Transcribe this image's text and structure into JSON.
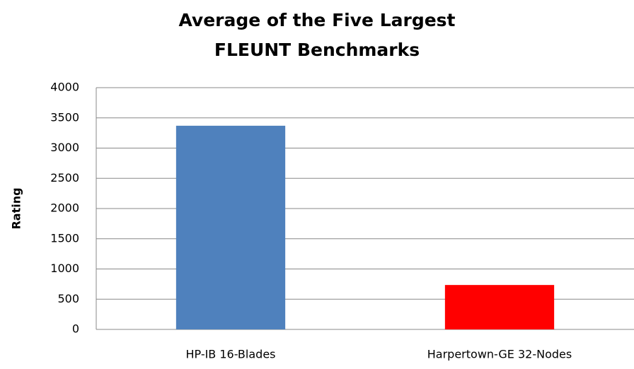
{
  "chart_data": {
    "type": "bar",
    "title": [
      "Average of the Five Largest",
      "FLEUNT Benchmarks"
    ],
    "y_label": "Rating",
    "categories": [
      "HP-IB 16-Blades",
      "Harpertown-GE 32-Nodes"
    ],
    "values": [
      3370,
      735
    ],
    "colors": [
      "#4f81bd",
      "#ff0000"
    ],
    "ylim": [
      0,
      4000
    ],
    "yticks": [
      0,
      500,
      1000,
      1500,
      2000,
      2500,
      3000,
      3500,
      4000
    ],
    "grid": true
  }
}
